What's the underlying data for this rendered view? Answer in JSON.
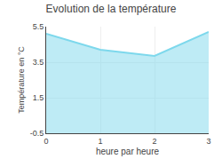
{
  "chart_data": {
    "type": "area",
    "title": "Evolution de la température",
    "xlabel": "heure par heure",
    "ylabel": "Température en °C",
    "x": [
      0,
      1,
      2,
      3
    ],
    "values": [
      5.1,
      4.2,
      3.85,
      5.2
    ],
    "color": "#7dd8ec",
    "xlim": [
      0,
      3
    ],
    "ylim": [
      -0.5,
      5.5
    ],
    "xticks": [
      0,
      1,
      2,
      3
    ],
    "yticks": [
      -0.5,
      1.5,
      3.5,
      5.5
    ],
    "grid": true
  }
}
